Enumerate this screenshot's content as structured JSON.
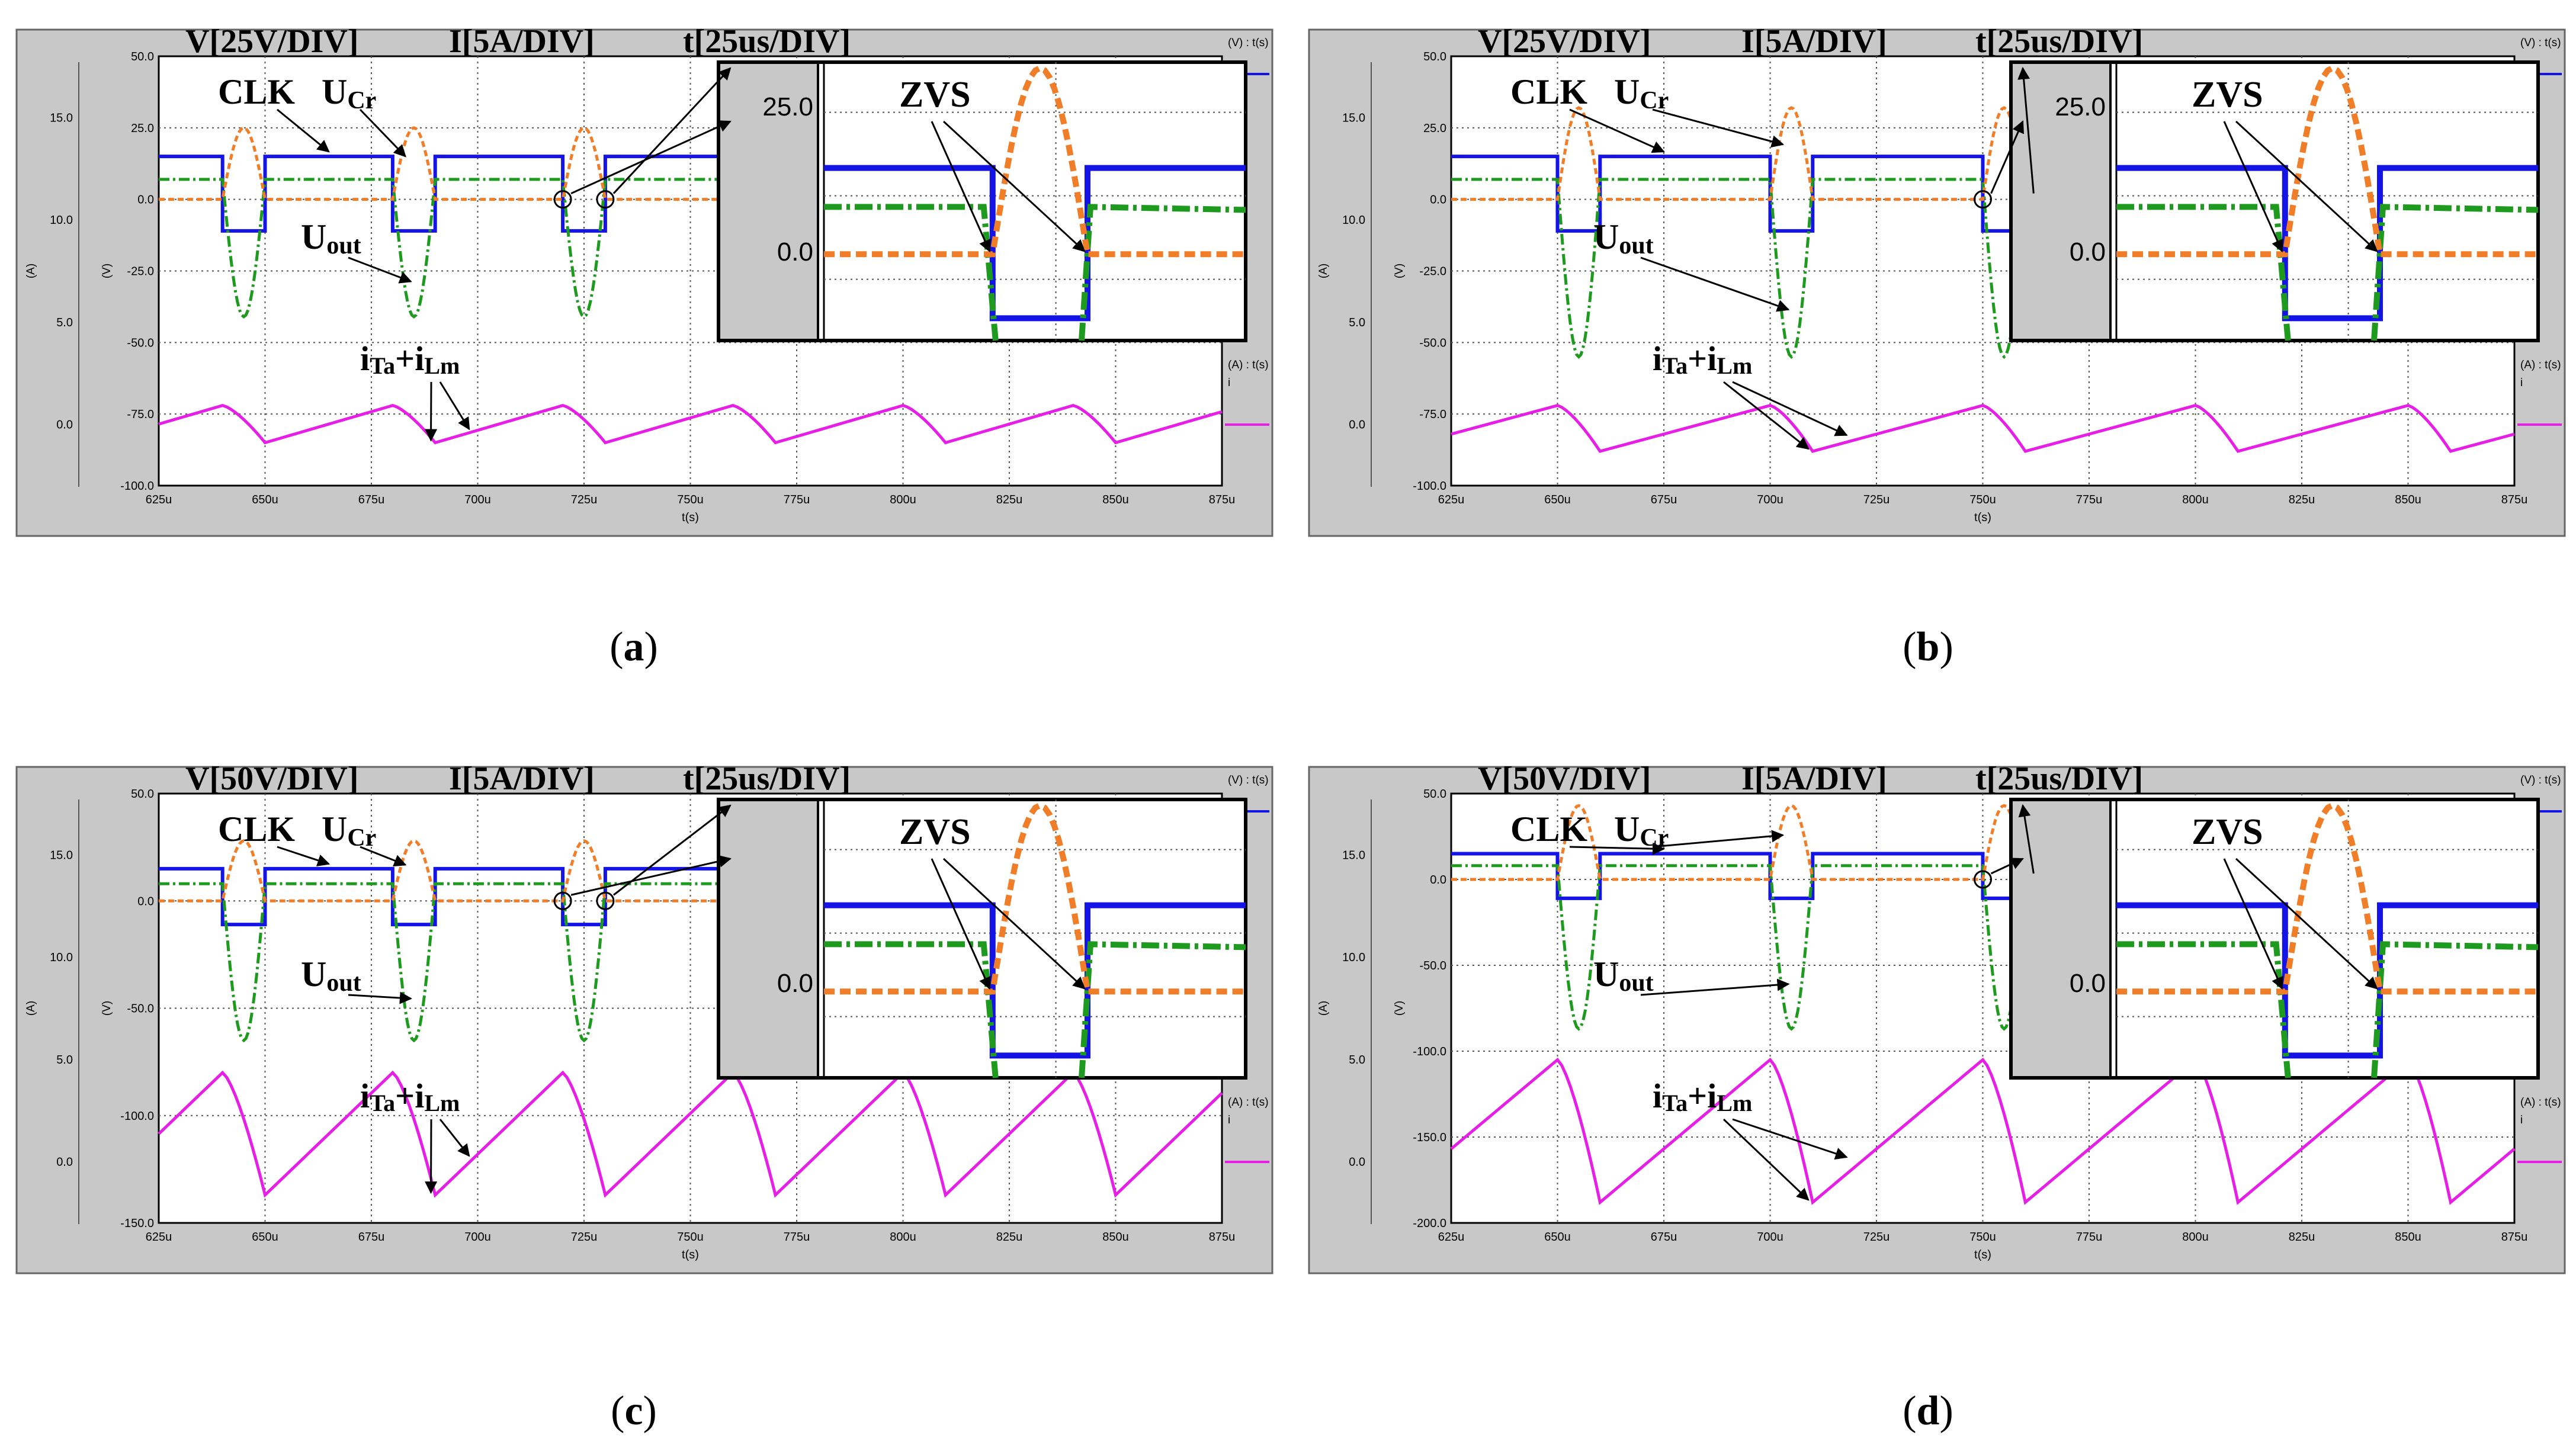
{
  "figure": {
    "caption_labels": [
      "(a)",
      "(b)",
      "(c)",
      "(d)"
    ]
  },
  "colors": {
    "clk": "#1414e6",
    "ucr": "#f07d28",
    "uout": "#1e9a1e",
    "current": "#e61ee6",
    "panel_bg": "#c8c8c8",
    "plot_bg": "#ffffff",
    "grid": "#555555"
  },
  "chart_data": [
    {
      "id": "a",
      "type": "line",
      "header": {
        "v": "V[25V/DIV]",
        "i": "I[5A/DIV]",
        "t": "t[25us/DIV]"
      },
      "annotations": {
        "clk": "CLK",
        "ucr_main": "U",
        "ucr_sub": "Cr",
        "uout_main": "U",
        "uout_sub": "out",
        "curr_i1": "i",
        "curr_s1": "Ta",
        "curr_plus": "+",
        "curr_i2": "i",
        "curr_s2": "Lm",
        "zvs": "ZVS"
      },
      "x_axis": {
        "label": "t(s)",
        "ticks": [
          "625u",
          "650u",
          "675u",
          "700u",
          "725u",
          "750u",
          "775u",
          "800u",
          "825u",
          "850u",
          "875u"
        ],
        "range_us": [
          625,
          875
        ]
      },
      "v_axis": {
        "label": "(V)",
        "ticks": [
          "50.0",
          "25.0",
          "0.0",
          "-25.0",
          "-50.0",
          "-75.0",
          "-100.0"
        ],
        "range": [
          -100,
          50
        ]
      },
      "i_axis": {
        "label": "(A)",
        "ticks": [
          "15.0",
          "10.0",
          "5.0",
          "0.0"
        ],
        "range": [
          -3,
          18
        ]
      },
      "legend_labels": [
        "(V) : t(s)",
        "(A) : t(s)",
        "i"
      ],
      "zoom": {
        "ticks": [
          "25.0",
          "0.0"
        ]
      },
      "periods_us": [
        640,
        680,
        720
      ],
      "clk_high_v": 15,
      "clk_low_v": -11,
      "low_duration_us": 10,
      "ucr_peak_v": 25,
      "uout_plateau_v": 7,
      "uout_min_v": -41,
      "current_min_a": -85,
      "current_max_a": -72
    },
    {
      "id": "b",
      "type": "line",
      "header": {
        "v": "V[25V/DIV]",
        "i": "I[5A/DIV]",
        "t": "t[25us/DIV]"
      },
      "annotations": {
        "clk": "CLK",
        "ucr_main": "U",
        "ucr_sub": "Cr",
        "uout_main": "U",
        "uout_sub": "out",
        "curr_i1": "i",
        "curr_s1": "Ta",
        "curr_plus": "+",
        "curr_i2": "i",
        "curr_s2": "Lm",
        "zvs": "ZVS"
      },
      "x_axis": {
        "label": "t(s)",
        "ticks": [
          "625u",
          "650u",
          "675u",
          "700u",
          "725u",
          "750u",
          "775u",
          "800u",
          "825u",
          "850u",
          "875u"
        ],
        "range_us": [
          625,
          875
        ]
      },
      "v_axis": {
        "label": "(V)",
        "ticks": [
          "50.0",
          "25.0",
          "0.0",
          "-25.0",
          "-50.0",
          "-75.0",
          "-100.0"
        ],
        "range": [
          -100,
          50
        ]
      },
      "i_axis": {
        "label": "(A)",
        "ticks": [
          "15.0",
          "10.0",
          "5.0",
          "0.0"
        ],
        "range": [
          -3,
          18
        ]
      },
      "legend_labels": [
        "(V) : t(s)",
        "(A) : t(s)",
        "i"
      ],
      "zoom": {
        "ticks": [
          "25.0",
          "0.0"
        ]
      },
      "periods_us": [
        650,
        700,
        750
      ],
      "clk_high_v": 15,
      "clk_low_v": -11,
      "low_duration_us": 10,
      "ucr_peak_v": 32,
      "uout_plateau_v": 7,
      "uout_min_v": -55,
      "current_min_a": -88,
      "current_max_a": -72
    },
    {
      "id": "c",
      "type": "line",
      "header": {
        "v": "V[50V/DIV]",
        "i": "I[5A/DIV]",
        "t": "t[25us/DIV]"
      },
      "annotations": {
        "clk": "CLK",
        "ucr_main": "U",
        "ucr_sub": "Cr",
        "uout_main": "U",
        "uout_sub": "out",
        "curr_i1": "i",
        "curr_s1": "Ta",
        "curr_plus": "+",
        "curr_i2": "i",
        "curr_s2": "Lm",
        "zvs": "ZVS"
      },
      "x_axis": {
        "label": "t(s)",
        "ticks": [
          "625u",
          "650u",
          "675u",
          "700u",
          "725u",
          "750u",
          "775u",
          "800u",
          "825u",
          "850u",
          "875u"
        ],
        "range_us": [
          625,
          875
        ]
      },
      "v_axis": {
        "label": "(V)",
        "ticks": [
          "50.0",
          "0.0",
          "-50.0",
          "-100.0",
          "-150.0"
        ],
        "range": [
          -150,
          50
        ]
      },
      "i_axis": {
        "label": "(A)",
        "ticks": [
          "15.0",
          "10.0",
          "5.0",
          "0.0"
        ],
        "range": [
          -3,
          18
        ]
      },
      "legend_labels": [
        "(V) : t(s)",
        "(A) : t(s)",
        "i"
      ],
      "zoom": {
        "ticks": [
          "0.0"
        ]
      },
      "periods_us": [
        640,
        680,
        720
      ],
      "clk_high_v": 15,
      "clk_low_v": -11,
      "low_duration_us": 10,
      "ucr_peak_v": 28,
      "uout_plateau_v": 8,
      "uout_min_v": -65,
      "current_min_a": -137,
      "current_max_a": -80
    },
    {
      "id": "d",
      "type": "line",
      "header": {
        "v": "V[50V/DIV]",
        "i": "I[5A/DIV]",
        "t": "t[25us/DIV]"
      },
      "annotations": {
        "clk": "CLK",
        "ucr_main": "U",
        "ucr_sub": "Cr",
        "uout_main": "U",
        "uout_sub": "out",
        "curr_i1": "i",
        "curr_s1": "Ta",
        "curr_plus": "+",
        "curr_i2": "i",
        "curr_s2": "Lm",
        "zvs": "ZVS"
      },
      "x_axis": {
        "label": "t(s)",
        "ticks": [
          "625u",
          "650u",
          "675u",
          "700u",
          "725u",
          "750u",
          "775u",
          "800u",
          "825u",
          "850u",
          "875u"
        ],
        "range_us": [
          625,
          875
        ]
      },
      "v_axis": {
        "label": "(V)",
        "ticks": [
          "50.0",
          "0.0",
          "-50.0",
          "-100.0",
          "-150.0",
          "-200.0"
        ],
        "range": [
          -200,
          50
        ]
      },
      "i_axis": {
        "label": "(A)",
        "ticks": [
          "15.0",
          "10.0",
          "5.0",
          "0.0"
        ],
        "range": [
          -3,
          18
        ]
      },
      "legend_labels": [
        "(V) : t(s)",
        "(A) : t(s)",
        "i"
      ],
      "zoom": {
        "ticks": [
          "0.0"
        ]
      },
      "periods_us": [
        650,
        700,
        750
      ],
      "clk_high_v": 15,
      "clk_low_v": -11,
      "low_duration_us": 10,
      "ucr_peak_v": 43,
      "uout_plateau_v": 8,
      "uout_min_v": -87,
      "current_min_a": -188,
      "current_max_a": -105
    }
  ]
}
